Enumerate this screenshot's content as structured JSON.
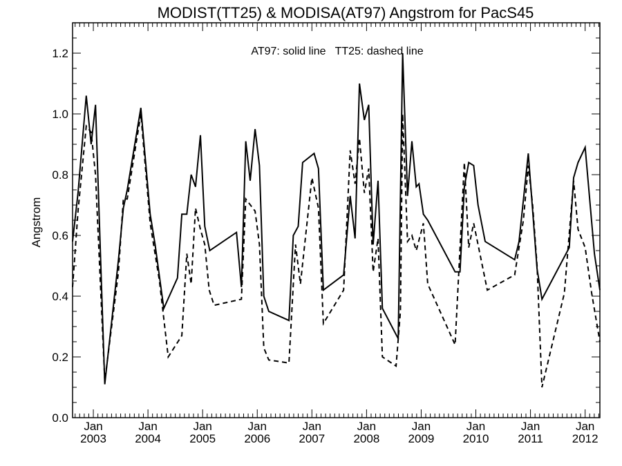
{
  "chart_data": {
    "type": "line",
    "title": "MODIST(TT25) & MODISA(AT97)  Angstrom for PacS45",
    "annotation": "AT97: solid line   TT25: dashed line",
    "ylabel": "Angstrom",
    "xlabel": "",
    "xlim": [
      2002.62,
      2012.27
    ],
    "ylim": [
      0.0,
      1.3
    ],
    "yticks": [
      {
        "value": 0.0,
        "label": "0.0"
      },
      {
        "value": 0.2,
        "label": "0.2"
      },
      {
        "value": 0.4,
        "label": "0.4"
      },
      {
        "value": 0.6,
        "label": "0.6"
      },
      {
        "value": 0.8,
        "label": "0.8"
      },
      {
        "value": 1.0,
        "label": "1.0"
      },
      {
        "value": 1.2,
        "label": "1.2"
      }
    ],
    "xticks": [
      {
        "value": 2003,
        "month": "Jan",
        "year": "2003"
      },
      {
        "value": 2004,
        "month": "Jan",
        "year": "2004"
      },
      {
        "value": 2005,
        "month": "Jan",
        "year": "2005"
      },
      {
        "value": 2006,
        "month": "Jan",
        "year": "2006"
      },
      {
        "value": 2007,
        "month": "Jan",
        "year": "2007"
      },
      {
        "value": 2008,
        "month": "Jan",
        "year": "2008"
      },
      {
        "value": 2009,
        "month": "Jan",
        "year": "2009"
      },
      {
        "value": 2010,
        "month": "Jan",
        "year": "2010"
      },
      {
        "value": 2011,
        "month": "Jan",
        "year": "2011"
      },
      {
        "value": 2012,
        "month": "Jan",
        "year": "2012"
      }
    ],
    "series": [
      {
        "style": "solid",
        "points": [
          [
            2002.62,
            0.58
          ],
          [
            2002.72,
            0.74
          ],
          [
            2002.87,
            1.06
          ],
          [
            2002.96,
            0.9
          ],
          [
            2003.04,
            1.03
          ],
          [
            2003.21,
            0.11
          ],
          [
            2003.46,
            0.52
          ],
          [
            2003.55,
            0.69
          ],
          [
            2003.62,
            0.75
          ],
          [
            2003.87,
            1.02
          ],
          [
            2004.04,
            0.67
          ],
          [
            2004.13,
            0.57
          ],
          [
            2004.29,
            0.36
          ],
          [
            2004.54,
            0.46
          ],
          [
            2004.62,
            0.67
          ],
          [
            2004.71,
            0.67
          ],
          [
            2004.79,
            0.8
          ],
          [
            2004.87,
            0.76
          ],
          [
            2004.96,
            0.93
          ],
          [
            2005.04,
            0.63
          ],
          [
            2005.13,
            0.55
          ],
          [
            2005.62,
            0.61
          ],
          [
            2005.71,
            0.43
          ],
          [
            2005.79,
            0.91
          ],
          [
            2005.87,
            0.78
          ],
          [
            2005.96,
            0.95
          ],
          [
            2006.04,
            0.83
          ],
          [
            2006.12,
            0.4
          ],
          [
            2006.21,
            0.35
          ],
          [
            2006.58,
            0.32
          ],
          [
            2006.66,
            0.6
          ],
          [
            2006.75,
            0.63
          ],
          [
            2006.83,
            0.84
          ],
          [
            2007.04,
            0.87
          ],
          [
            2007.12,
            0.82
          ],
          [
            2007.21,
            0.42
          ],
          [
            2007.58,
            0.47
          ],
          [
            2007.7,
            0.73
          ],
          [
            2007.79,
            0.59
          ],
          [
            2007.87,
            1.1
          ],
          [
            2007.96,
            0.98
          ],
          [
            2008.04,
            1.03
          ],
          [
            2008.12,
            0.57
          ],
          [
            2008.21,
            0.78
          ],
          [
            2008.29,
            0.36
          ],
          [
            2008.58,
            0.26
          ],
          [
            2008.66,
            1.2
          ],
          [
            2008.75,
            0.73
          ],
          [
            2008.83,
            0.91
          ],
          [
            2008.91,
            0.76
          ],
          [
            2008.96,
            0.77
          ],
          [
            2009.04,
            0.67
          ],
          [
            2009.12,
            0.65
          ],
          [
            2009.62,
            0.48
          ],
          [
            2009.71,
            0.48
          ],
          [
            2009.79,
            0.76
          ],
          [
            2009.87,
            0.84
          ],
          [
            2009.96,
            0.83
          ],
          [
            2010.04,
            0.7
          ],
          [
            2010.17,
            0.58
          ],
          [
            2010.71,
            0.52
          ],
          [
            2010.79,
            0.58
          ],
          [
            2010.96,
            0.87
          ],
          [
            2011.12,
            0.49
          ],
          [
            2011.21,
            0.39
          ],
          [
            2011.71,
            0.56
          ],
          [
            2011.79,
            0.79
          ],
          [
            2011.87,
            0.84
          ],
          [
            2012.0,
            0.89
          ],
          [
            2012.17,
            0.54
          ],
          [
            2012.27,
            0.42
          ]
        ]
      },
      {
        "style": "dashed",
        "points": [
          [
            2002.62,
            0.43
          ],
          [
            2002.72,
            0.68
          ],
          [
            2002.87,
            0.96
          ],
          [
            2002.96,
            0.94
          ],
          [
            2003.04,
            0.8
          ],
          [
            2003.21,
            0.12
          ],
          [
            2003.46,
            0.48
          ],
          [
            2003.55,
            0.72
          ],
          [
            2003.62,
            0.72
          ],
          [
            2003.87,
            1.0
          ],
          [
            2004.04,
            0.64
          ],
          [
            2004.21,
            0.45
          ],
          [
            2004.37,
            0.2
          ],
          [
            2004.62,
            0.27
          ],
          [
            2004.71,
            0.54
          ],
          [
            2004.79,
            0.44
          ],
          [
            2004.87,
            0.69
          ],
          [
            2004.96,
            0.62
          ],
          [
            2005.04,
            0.57
          ],
          [
            2005.12,
            0.42
          ],
          [
            2005.21,
            0.37
          ],
          [
            2005.71,
            0.39
          ],
          [
            2005.79,
            0.72
          ],
          [
            2005.96,
            0.68
          ],
          [
            2006.04,
            0.57
          ],
          [
            2006.12,
            0.23
          ],
          [
            2006.21,
            0.19
          ],
          [
            2006.58,
            0.18
          ],
          [
            2006.7,
            0.57
          ],
          [
            2006.79,
            0.44
          ],
          [
            2007.0,
            0.79
          ],
          [
            2007.12,
            0.69
          ],
          [
            2007.21,
            0.31
          ],
          [
            2007.58,
            0.42
          ],
          [
            2007.7,
            0.88
          ],
          [
            2007.79,
            0.77
          ],
          [
            2007.87,
            0.92
          ],
          [
            2007.96,
            0.74
          ],
          [
            2008.04,
            0.82
          ],
          [
            2008.12,
            0.48
          ],
          [
            2008.21,
            0.59
          ],
          [
            2008.29,
            0.2
          ],
          [
            2008.54,
            0.17
          ],
          [
            2008.62,
            0.35
          ],
          [
            2008.66,
            1.0
          ],
          [
            2008.75,
            0.58
          ],
          [
            2008.83,
            0.6
          ],
          [
            2008.91,
            0.55
          ],
          [
            2009.04,
            0.64
          ],
          [
            2009.12,
            0.44
          ],
          [
            2009.62,
            0.24
          ],
          [
            2009.79,
            0.84
          ],
          [
            2009.87,
            0.56
          ],
          [
            2009.96,
            0.64
          ],
          [
            2010.21,
            0.42
          ],
          [
            2010.71,
            0.47
          ],
          [
            2010.87,
            0.65
          ],
          [
            2010.96,
            0.83
          ],
          [
            2011.04,
            0.7
          ],
          [
            2011.12,
            0.5
          ],
          [
            2011.21,
            0.1
          ],
          [
            2011.62,
            0.41
          ],
          [
            2011.79,
            0.78
          ],
          [
            2011.87,
            0.62
          ],
          [
            2012.0,
            0.56
          ],
          [
            2012.12,
            0.41
          ],
          [
            2012.27,
            0.25
          ]
        ]
      }
    ]
  }
}
